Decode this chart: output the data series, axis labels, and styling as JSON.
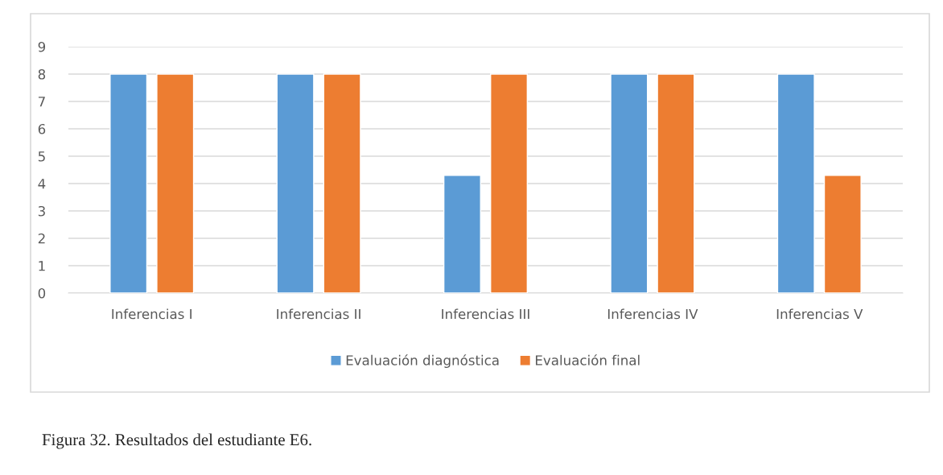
{
  "chart_data": {
    "type": "bar",
    "categories": [
      "Inferencias I",
      "Inferencias II",
      "Inferencias III",
      "Inferencias IV",
      "Inferencias V"
    ],
    "series": [
      {
        "name": "Evaluación diagnóstica",
        "color": "#5b9bd5",
        "values": [
          8,
          8,
          4.3,
          8,
          8
        ]
      },
      {
        "name": "Evaluación final",
        "color": "#ed7d31",
        "values": [
          8,
          8,
          8,
          8,
          4.3
        ]
      }
    ],
    "ylim": [
      0,
      9
    ],
    "yticks": [
      0,
      1,
      2,
      3,
      4,
      5,
      6,
      7,
      8,
      9
    ],
    "grid": "y",
    "legend": "bottom",
    "annotations": [
      "Figura 32. Resultados del estudiante E6."
    ]
  }
}
